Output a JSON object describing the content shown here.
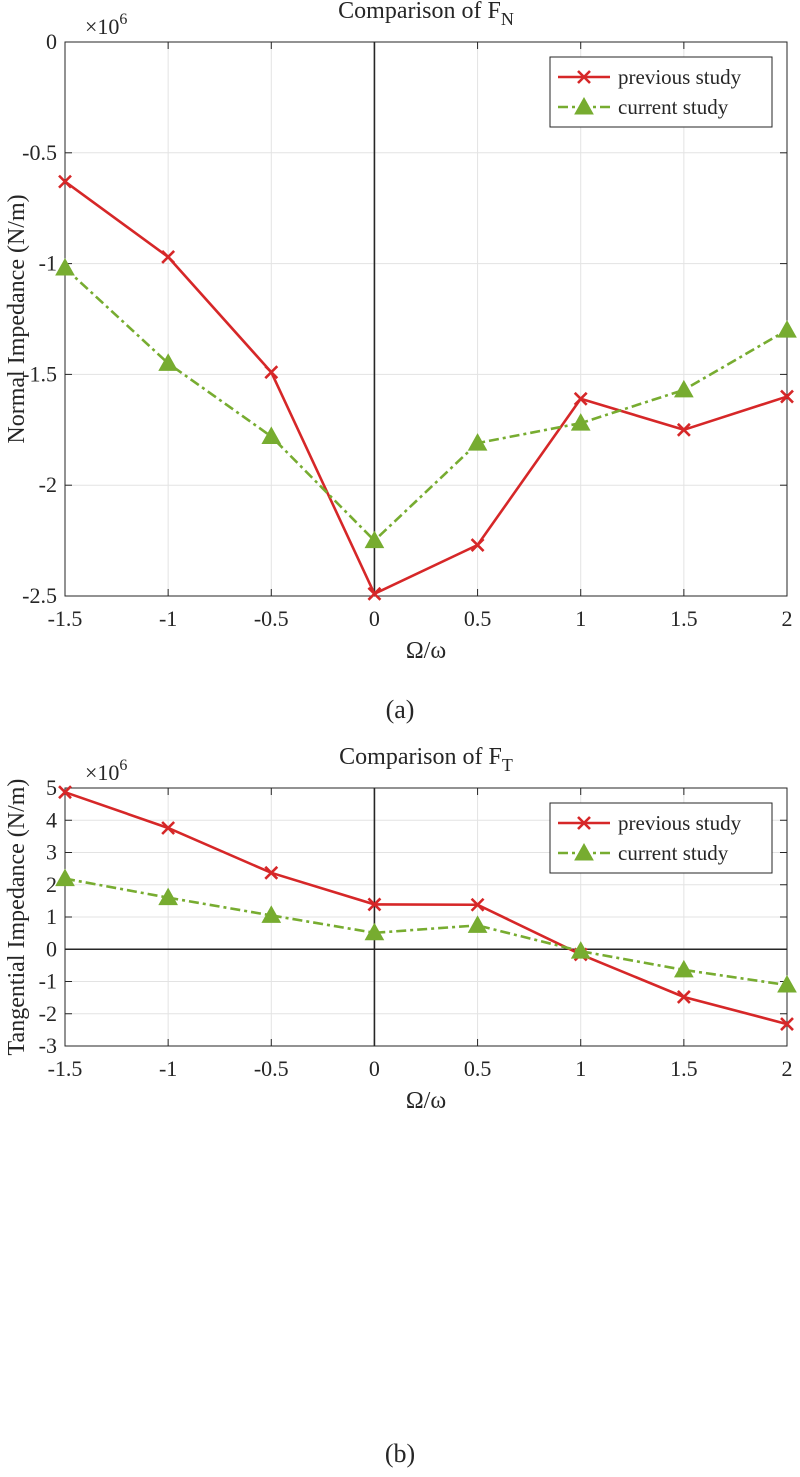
{
  "figure": {
    "panels": [
      "(a)",
      "(b)"
    ]
  },
  "chart_data": [
    {
      "type": "line",
      "title": "Comparison of F",
      "title_sub": "N",
      "xlabel": "Ω/ω",
      "ylabel": "Normal Impedance (N/m)",
      "exponent_label": "×10",
      "exponent_power": "6",
      "xlim": [
        -1.5,
        2
      ],
      "ylim": [
        -2.5,
        0
      ],
      "x_ticks": [
        -1.5,
        -1,
        -0.5,
        0,
        0.5,
        1,
        1.5,
        2
      ],
      "x_tick_labels": [
        "-1.5",
        "-1",
        "-0.5",
        "0",
        "0.5",
        "1",
        "1.5",
        "2"
      ],
      "y_ticks": [
        -2.5,
        -2,
        -1.5,
        -1,
        -0.5,
        0
      ],
      "y_tick_labels": [
        "-2.5",
        "-2",
        "-1.5",
        "-1",
        "-0.5",
        "0"
      ],
      "grid": true,
      "legend_position": "top-right",
      "x": [
        -1.5,
        -1,
        -0.5,
        0,
        0.5,
        1,
        1.5,
        2
      ],
      "series": [
        {
          "name": "previous study",
          "color": "#d62728",
          "marker": "x",
          "style": "solid",
          "values": [
            -0.63,
            -0.97,
            -1.49,
            -2.49,
            -2.27,
            -1.61,
            -1.75,
            -1.6
          ]
        },
        {
          "name": "current study",
          "color": "#77ac30",
          "marker": "triangle",
          "style": "dashdot",
          "values": [
            -1.02,
            -1.45,
            -1.78,
            -2.25,
            -1.81,
            -1.72,
            -1.57,
            -1.3
          ]
        }
      ]
    },
    {
      "type": "line",
      "title": "Comparison of F",
      "title_sub": "T",
      "xlabel": "Ω/ω",
      "ylabel": "Tangential Impedance (N/m)",
      "exponent_label": "×10",
      "exponent_power": "6",
      "xlim": [
        -1.5,
        2
      ],
      "ylim": [
        -3,
        5
      ],
      "x_ticks": [
        -1.5,
        -1,
        -0.5,
        0,
        0.5,
        1,
        1.5,
        2
      ],
      "x_tick_labels": [
        "-1.5",
        "-1",
        "-0.5",
        "0",
        "0.5",
        "1",
        "1.5",
        "2"
      ],
      "y_ticks": [
        -3,
        -2,
        -1,
        0,
        1,
        2,
        3,
        4,
        5
      ],
      "y_tick_labels": [
        "-3",
        "-2",
        "-1",
        "0",
        "1",
        "2",
        "3",
        "4",
        "5"
      ],
      "grid": true,
      "legend_position": "top-right",
      "x": [
        -1.5,
        -1,
        -0.5,
        0,
        0.5,
        1,
        1.5,
        2
      ],
      "series": [
        {
          "name": "previous study",
          "color": "#d62728",
          "marker": "x",
          "style": "solid",
          "values": [
            4.87,
            3.76,
            2.37,
            1.39,
            1.38,
            -0.16,
            -1.48,
            -2.32
          ]
        },
        {
          "name": "current study",
          "color": "#77ac30",
          "marker": "triangle",
          "style": "dashdot",
          "values": [
            2.19,
            1.6,
            1.05,
            0.51,
            0.74,
            -0.06,
            -0.64,
            -1.11
          ]
        }
      ]
    }
  ]
}
